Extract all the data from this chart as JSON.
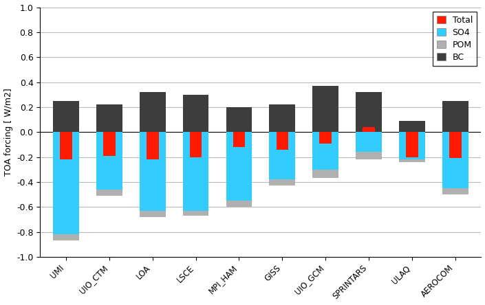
{
  "models": [
    "UMI",
    "UIO_CTM",
    "LOA",
    "LSCE",
    "MPI_HAM",
    "GISS",
    "UIO_GCM",
    "SPRINTARS",
    "ULAQ",
    "AEROCOM"
  ],
  "SO4": [
    -0.82,
    -0.46,
    -0.63,
    -0.63,
    -0.55,
    -0.38,
    -0.3,
    -0.16,
    -0.22,
    -0.45
  ],
  "POM": [
    -0.05,
    -0.05,
    -0.05,
    -0.04,
    -0.05,
    -0.05,
    -0.07,
    -0.06,
    -0.02,
    -0.05
  ],
  "BC": [
    0.25,
    0.22,
    0.32,
    0.3,
    0.2,
    0.22,
    0.37,
    0.32,
    0.09,
    0.25
  ],
  "Total": [
    -0.22,
    -0.19,
    -0.22,
    -0.2,
    -0.12,
    -0.14,
    -0.09,
    0.04,
    -0.2,
    -0.21
  ],
  "colors": {
    "SO4": "#33CCFF",
    "POM": "#B0B0B0",
    "BC": "#3D3D3D",
    "Total": "#FF1A00"
  },
  "ylim": [
    -1.0,
    1.0
  ],
  "yticks": [
    -1.0,
    -0.8,
    -0.6,
    -0.4,
    -0.2,
    0.0,
    0.2,
    0.4,
    0.6,
    0.8,
    1.0
  ],
  "ylabel": "TOA forcing [ W/m2]",
  "grid_color": "#BBBBBB",
  "bar_width": 0.6,
  "total_bar_width": 0.28
}
